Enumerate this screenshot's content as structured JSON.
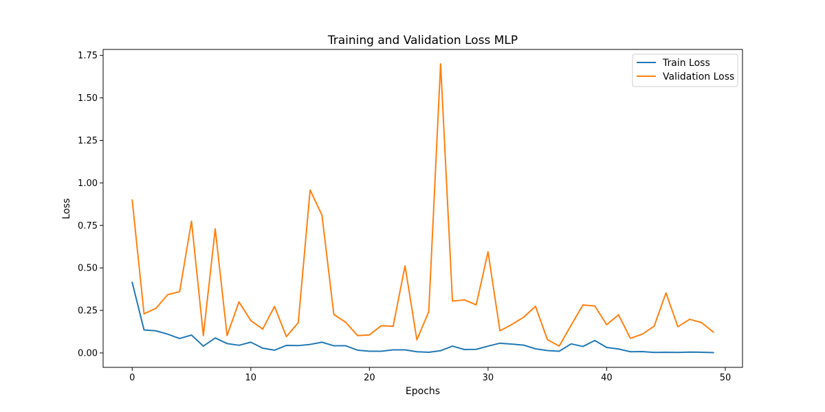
{
  "chart_data": {
    "type": "line",
    "title": "Training and Validation Loss MLP",
    "xlabel": "Epochs",
    "ylabel": "Loss",
    "xlim": [
      -2.45,
      51.45
    ],
    "ylim": [
      -0.085,
      1.785
    ],
    "xticks": [
      0,
      10,
      20,
      30,
      40,
      50
    ],
    "xtick_labels": [
      "0",
      "10",
      "20",
      "30",
      "40",
      "50"
    ],
    "yticks": [
      0.0,
      0.25,
      0.5,
      0.75,
      1.0,
      1.25,
      1.5,
      1.75
    ],
    "ytick_labels": [
      "0.00",
      "0.25",
      "0.50",
      "0.75",
      "1.00",
      "1.25",
      "1.50",
      "1.75"
    ],
    "grid": false,
    "legend_position": "top-right",
    "x": [
      0,
      1,
      2,
      3,
      4,
      5,
      6,
      7,
      8,
      9,
      10,
      11,
      12,
      13,
      14,
      15,
      16,
      17,
      18,
      19,
      20,
      21,
      22,
      23,
      24,
      25,
      26,
      27,
      28,
      29,
      30,
      31,
      32,
      33,
      34,
      35,
      36,
      37,
      38,
      39,
      40,
      41,
      42,
      43,
      44,
      45,
      46,
      47,
      48,
      49
    ],
    "series": [
      {
        "name": "Train Loss",
        "color": "#1f77b4",
        "values": [
          0.415,
          0.135,
          0.13,
          0.11,
          0.085,
          0.105,
          0.04,
          0.088,
          0.055,
          0.045,
          0.063,
          0.028,
          0.016,
          0.044,
          0.043,
          0.05,
          0.063,
          0.042,
          0.042,
          0.016,
          0.01,
          0.01,
          0.018,
          0.018,
          0.007,
          0.004,
          0.013,
          0.04,
          0.02,
          0.021,
          0.04,
          0.057,
          0.052,
          0.046,
          0.024,
          0.014,
          0.01,
          0.053,
          0.038,
          0.073,
          0.032,
          0.023,
          0.007,
          0.008,
          0.003,
          0.004,
          0.003,
          0.005,
          0.004,
          0.002
        ]
      },
      {
        "name": "Validation Loss",
        "color": "#ff7f0e",
        "values": [
          0.9,
          0.23,
          0.262,
          0.343,
          0.36,
          0.775,
          0.102,
          0.73,
          0.102,
          0.3,
          0.19,
          0.14,
          0.273,
          0.096,
          0.178,
          0.958,
          0.81,
          0.226,
          0.18,
          0.102,
          0.106,
          0.16,
          0.157,
          0.512,
          0.077,
          0.242,
          1.7,
          0.305,
          0.312,
          0.283,
          0.594,
          0.13,
          0.167,
          0.21,
          0.274,
          0.078,
          0.04,
          0.163,
          0.282,
          0.276,
          0.166,
          0.224,
          0.086,
          0.11,
          0.157,
          0.353,
          0.154,
          0.198,
          0.178,
          0.122
        ]
      }
    ]
  }
}
